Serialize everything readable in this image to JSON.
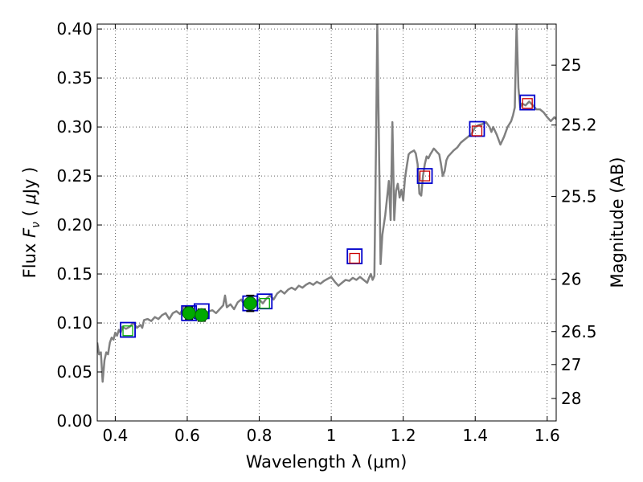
{
  "chart_data": {
    "type": "scatter",
    "title": "",
    "xlabel": "Wavelength  λ (μm)",
    "ylabel_parts": [
      "Flux  ",
      "F",
      "ν",
      "  ( ",
      "μ",
      "Jy )"
    ],
    "ylabel_right": "Magnitude (AB)",
    "xlim": [
      0.35,
      1.625
    ],
    "ylim": [
      0,
      0.405
    ],
    "grid": true,
    "x_ticks": [
      {
        "value": 0.4,
        "label": "0.4"
      },
      {
        "value": 0.6,
        "label": "0.6"
      },
      {
        "value": 0.8,
        "label": "0.8"
      },
      {
        "value": 1.0,
        "label": "1"
      },
      {
        "value": 1.2,
        "label": "1.2"
      },
      {
        "value": 1.4,
        "label": "1.4"
      },
      {
        "value": 1.6,
        "label": "1.6"
      }
    ],
    "y_ticks": [
      {
        "value": 0.0,
        "label": "0.00"
      },
      {
        "value": 0.05,
        "label": "0.05"
      },
      {
        "value": 0.1,
        "label": "0.10"
      },
      {
        "value": 0.15,
        "label": "0.15"
      },
      {
        "value": 0.2,
        "label": "0.20"
      },
      {
        "value": 0.25,
        "label": "0.25"
      },
      {
        "value": 0.3,
        "label": "0.30"
      },
      {
        "value": 0.35,
        "label": "0.35"
      },
      {
        "value": 0.4,
        "label": "0.40"
      }
    ],
    "magnitude_ticks": [
      {
        "value": 25,
        "label": "25"
      },
      {
        "value": 25.2,
        "label": "25.2"
      },
      {
        "value": 25.5,
        "label": "25.5"
      },
      {
        "value": 26,
        "label": "26"
      },
      {
        "value": 26.5,
        "label": "26.5"
      },
      {
        "value": 27,
        "label": "27"
      },
      {
        "value": 28,
        "label": "28"
      }
    ],
    "series": [
      {
        "name": "model spectrum",
        "kind": "line",
        "color": "#808080",
        "points": [
          [
            0.35,
            0.08
          ],
          [
            0.355,
            0.068
          ],
          [
            0.36,
            0.07
          ],
          [
            0.365,
            0.04
          ],
          [
            0.37,
            0.062
          ],
          [
            0.375,
            0.07
          ],
          [
            0.38,
            0.068
          ],
          [
            0.385,
            0.08
          ],
          [
            0.39,
            0.085
          ],
          [
            0.395,
            0.083
          ],
          [
            0.4,
            0.09
          ],
          [
            0.405,
            0.087
          ],
          [
            0.41,
            0.093
          ],
          [
            0.415,
            0.09
          ],
          [
            0.42,
            0.096
          ],
          [
            0.43,
            0.094
          ],
          [
            0.44,
            0.096
          ],
          [
            0.45,
            0.1
          ],
          [
            0.455,
            0.098
          ],
          [
            0.46,
            0.095
          ],
          [
            0.47,
            0.098
          ],
          [
            0.475,
            0.095
          ],
          [
            0.48,
            0.103
          ],
          [
            0.49,
            0.104
          ],
          [
            0.5,
            0.102
          ],
          [
            0.51,
            0.106
          ],
          [
            0.52,
            0.104
          ],
          [
            0.53,
            0.108
          ],
          [
            0.54,
            0.11
          ],
          [
            0.55,
            0.104
          ],
          [
            0.56,
            0.11
          ],
          [
            0.57,
            0.112
          ],
          [
            0.58,
            0.109
          ],
          [
            0.59,
            0.116
          ],
          [
            0.6,
            0.113
          ],
          [
            0.61,
            0.117
          ],
          [
            0.62,
            0.109
          ],
          [
            0.63,
            0.113
          ],
          [
            0.64,
            0.114
          ],
          [
            0.65,
            0.108
          ],
          [
            0.66,
            0.112
          ],
          [
            0.67,
            0.113
          ],
          [
            0.68,
            0.11
          ],
          [
            0.69,
            0.114
          ],
          [
            0.7,
            0.118
          ],
          [
            0.705,
            0.128
          ],
          [
            0.71,
            0.116
          ],
          [
            0.72,
            0.119
          ],
          [
            0.73,
            0.114
          ],
          [
            0.74,
            0.121
          ],
          [
            0.75,
            0.124
          ],
          [
            0.76,
            0.118
          ],
          [
            0.77,
            0.122
          ],
          [
            0.78,
            0.126
          ],
          [
            0.79,
            0.12
          ],
          [
            0.8,
            0.124
          ],
          [
            0.81,
            0.12
          ],
          [
            0.82,
            0.125
          ],
          [
            0.83,
            0.128
          ],
          [
            0.84,
            0.124
          ],
          [
            0.85,
            0.13
          ],
          [
            0.86,
            0.133
          ],
          [
            0.87,
            0.13
          ],
          [
            0.88,
            0.134
          ],
          [
            0.89,
            0.136
          ],
          [
            0.9,
            0.134
          ],
          [
            0.91,
            0.138
          ],
          [
            0.92,
            0.136
          ],
          [
            0.93,
            0.139
          ],
          [
            0.94,
            0.141
          ],
          [
            0.95,
            0.139
          ],
          [
            0.96,
            0.142
          ],
          [
            0.97,
            0.14
          ],
          [
            0.98,
            0.143
          ],
          [
            0.99,
            0.145
          ],
          [
            1.0,
            0.147
          ],
          [
            1.01,
            0.142
          ],
          [
            1.02,
            0.138
          ],
          [
            1.03,
            0.141
          ],
          [
            1.04,
            0.144
          ],
          [
            1.05,
            0.143
          ],
          [
            1.06,
            0.146
          ],
          [
            1.07,
            0.144
          ],
          [
            1.08,
            0.147
          ],
          [
            1.09,
            0.144
          ],
          [
            1.1,
            0.141
          ],
          [
            1.105,
            0.146
          ],
          [
            1.11,
            0.15
          ],
          [
            1.115,
            0.144
          ],
          [
            1.12,
            0.148
          ],
          [
            1.125,
            0.3
          ],
          [
            1.128,
            0.405
          ],
          [
            1.132,
            0.3
          ],
          [
            1.137,
            0.16
          ],
          [
            1.142,
            0.19
          ],
          [
            1.15,
            0.21
          ],
          [
            1.16,
            0.245
          ],
          [
            1.165,
            0.205
          ],
          [
            1.17,
            0.305
          ],
          [
            1.175,
            0.205
          ],
          [
            1.18,
            0.235
          ],
          [
            1.185,
            0.242
          ],
          [
            1.19,
            0.228
          ],
          [
            1.195,
            0.236
          ],
          [
            1.2,
            0.225
          ],
          [
            1.205,
            0.248
          ],
          [
            1.21,
            0.26
          ],
          [
            1.215,
            0.272
          ],
          [
            1.22,
            0.274
          ],
          [
            1.225,
            0.275
          ],
          [
            1.23,
            0.276
          ],
          [
            1.235,
            0.273
          ],
          [
            1.24,
            0.262
          ],
          [
            1.245,
            0.232
          ],
          [
            1.25,
            0.23
          ],
          [
            1.255,
            0.25
          ],
          [
            1.26,
            0.262
          ],
          [
            1.265,
            0.27
          ],
          [
            1.27,
            0.268
          ],
          [
            1.275,
            0.272
          ],
          [
            1.28,
            0.275
          ],
          [
            1.285,
            0.278
          ],
          [
            1.29,
            0.276
          ],
          [
            1.295,
            0.274
          ],
          [
            1.3,
            0.272
          ],
          [
            1.305,
            0.262
          ],
          [
            1.31,
            0.25
          ],
          [
            1.315,
            0.255
          ],
          [
            1.32,
            0.266
          ],
          [
            1.325,
            0.27
          ],
          [
            1.33,
            0.272
          ],
          [
            1.34,
            0.276
          ],
          [
            1.35,
            0.279
          ],
          [
            1.36,
            0.284
          ],
          [
            1.37,
            0.287
          ],
          [
            1.38,
            0.29
          ],
          [
            1.39,
            0.293
          ],
          [
            1.4,
            0.3
          ],
          [
            1.41,
            0.302
          ],
          [
            1.42,
            0.303
          ],
          [
            1.43,
            0.305
          ],
          [
            1.44,
            0.3
          ],
          [
            1.445,
            0.295
          ],
          [
            1.45,
            0.3
          ],
          [
            1.46,
            0.292
          ],
          [
            1.47,
            0.282
          ],
          [
            1.48,
            0.29
          ],
          [
            1.49,
            0.3
          ],
          [
            1.5,
            0.306
          ],
          [
            1.505,
            0.312
          ],
          [
            1.51,
            0.32
          ],
          [
            1.515,
            0.405
          ],
          [
            1.52,
            0.34
          ],
          [
            1.525,
            0.32
          ],
          [
            1.53,
            0.324
          ],
          [
            1.54,
            0.322
          ],
          [
            1.55,
            0.326
          ],
          [
            1.56,
            0.322
          ],
          [
            1.57,
            0.318
          ],
          [
            1.58,
            0.318
          ],
          [
            1.59,
            0.315
          ],
          [
            1.6,
            0.31
          ],
          [
            1.61,
            0.306
          ],
          [
            1.62,
            0.31
          ],
          [
            1.625,
            0.308
          ]
        ]
      },
      {
        "name": "observed photometry (blue squares)",
        "kind": "marker",
        "marker": "square",
        "color": "#0000cc",
        "points": [
          [
            0.435,
            0.093
          ],
          [
            0.605,
            0.11
          ],
          [
            0.64,
            0.112
          ],
          [
            0.775,
            0.12
          ],
          [
            0.815,
            0.122
          ],
          [
            1.065,
            0.168
          ],
          [
            1.26,
            0.25
          ],
          [
            1.405,
            0.298
          ],
          [
            1.545,
            0.325
          ]
        ]
      },
      {
        "name": "model photometry (red squares)",
        "kind": "marker",
        "marker": "square",
        "color": "#cc0000",
        "points": [
          [
            1.065,
            0.166
          ],
          [
            1.26,
            0.25
          ],
          [
            1.405,
            0.296
          ],
          [
            1.545,
            0.324
          ]
        ]
      },
      {
        "name": "model photometry (green squares)",
        "kind": "marker",
        "marker": "square",
        "color": "#00aa00",
        "points": [
          [
            0.435,
            0.092
          ],
          [
            0.815,
            0.12
          ]
        ]
      },
      {
        "name": "measured flux with errors (green circles)",
        "kind": "errorbar",
        "marker": "circle",
        "color": "#00aa00",
        "points": [
          {
            "x": 0.605,
            "y": 0.11,
            "err": 0.006
          },
          {
            "x": 0.64,
            "y": 0.108,
            "err": 0.006
          },
          {
            "x": 0.775,
            "y": 0.12,
            "err": 0.008
          }
        ]
      }
    ]
  }
}
